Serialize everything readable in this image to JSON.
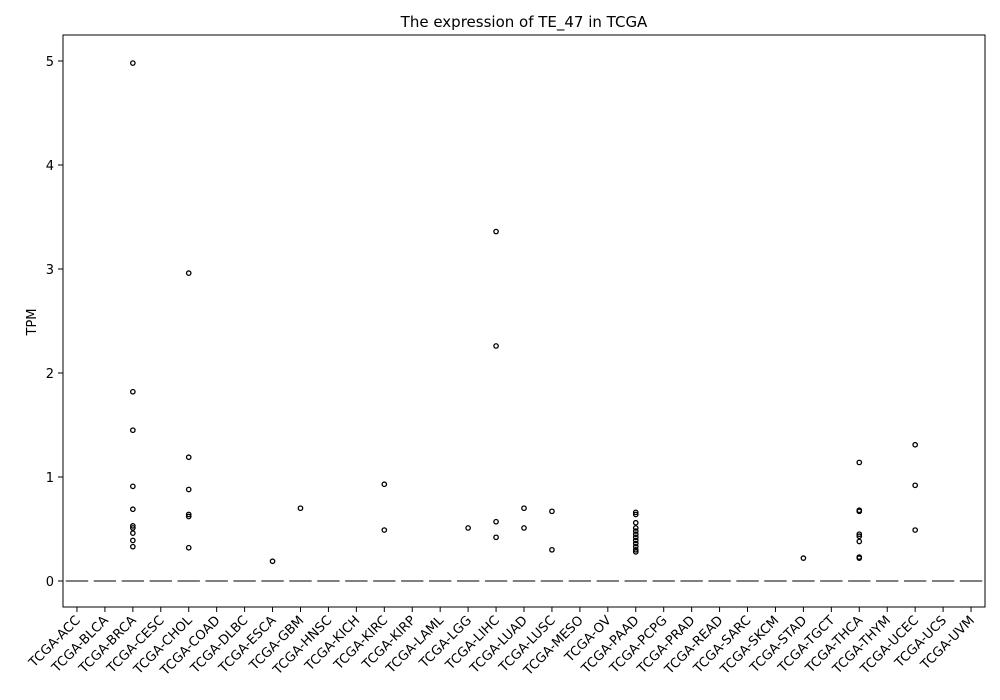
{
  "chart_data": {
    "type": "box",
    "title": "The expression of TE_47 in TCGA",
    "xlabel": "",
    "ylabel": "TPM",
    "ylim": [
      -0.25,
      5.25
    ],
    "yticks": [
      0,
      1,
      2,
      3,
      4,
      5
    ],
    "grid": false,
    "categories": [
      "TCGA-ACC",
      "TCGA-BLCA",
      "TCGA-BRCA",
      "TCGA-CESC",
      "TCGA-CHOL",
      "TCGA-COAD",
      "TCGA-DLBC",
      "TCGA-ESCA",
      "TCGA-GBM",
      "TCGA-HNSC",
      "TCGA-KICH",
      "TCGA-KIRC",
      "TCGA-KIRP",
      "TCGA-LAML",
      "TCGA-LGG",
      "TCGA-LIHC",
      "TCGA-LUAD",
      "TCGA-LUSC",
      "TCGA-MESO",
      "TCGA-OV",
      "TCGA-PAAD",
      "TCGA-PCPG",
      "TCGA-PRAD",
      "TCGA-READ",
      "TCGA-SARC",
      "TCGA-SKCM",
      "TCGA-STAD",
      "TCGA-TGCT",
      "TCGA-THCA",
      "TCGA-THYM",
      "TCGA-UCEC",
      "TCGA-UCS",
      "TCGA-UVM"
    ],
    "medians": [
      0,
      0,
      0,
      0,
      0,
      0,
      0,
      0,
      0,
      0,
      0,
      0,
      0,
      0,
      0,
      0,
      0,
      0,
      0,
      0,
      0,
      0,
      0,
      0,
      0,
      0,
      0,
      0,
      0,
      0,
      0,
      0,
      0
    ],
    "outliers": [
      [],
      [],
      [
        4.98,
        1.82,
        1.45,
        0.91,
        0.69,
        0.53,
        0.51,
        0.46,
        0.39,
        0.33
      ],
      [],
      [
        2.96,
        1.19,
        0.88,
        0.64,
        0.62,
        0.32
      ],
      [],
      [],
      [
        0.19
      ],
      [
        0.7
      ],
      [],
      [],
      [
        0.93,
        0.49
      ],
      [],
      [],
      [
        0.51
      ],
      [
        3.36,
        2.26,
        0.57,
        0.42
      ],
      [
        0.7,
        0.51
      ],
      [
        0.67,
        0.3
      ],
      [],
      [],
      [
        0.66,
        0.64,
        0.56,
        0.51,
        0.48,
        0.45,
        0.42,
        0.39,
        0.36,
        0.33,
        0.3,
        0.28
      ],
      [],
      [],
      [],
      [],
      [],
      [
        0.22
      ],
      [],
      [
        1.14,
        0.68,
        0.67,
        0.45,
        0.43,
        0.38,
        0.23,
        0.22
      ],
      [],
      [
        1.31,
        0.92,
        0.49
      ],
      [],
      []
    ]
  }
}
